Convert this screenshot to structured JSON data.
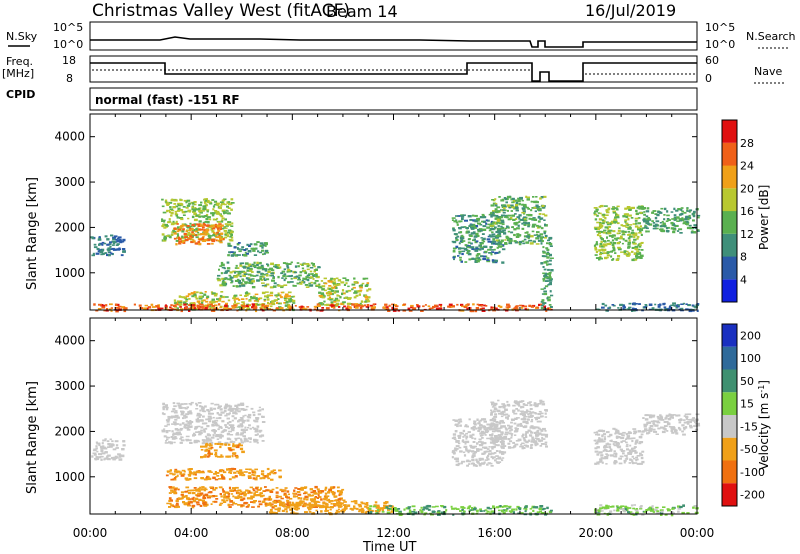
{
  "header": {
    "site": "Christmas Valley West (fitACF)",
    "beam": "Beam 14",
    "date": "16/Jul/2019"
  },
  "top_panels": {
    "nsky_label": "N.Sky",
    "nsearch_label": "N.Search",
    "nsky_ticks": [
      "10^5",
      "10^0"
    ],
    "nsearch_ticks": [
      "10^5",
      "10^0"
    ],
    "freq_label_1": "Freq.",
    "freq_label_2": "[MHz]",
    "freq_ticks": [
      "18",
      "8"
    ],
    "nave_label": "Nave",
    "nave_ticks": [
      "60",
      "0"
    ],
    "cpid_label": "CPID",
    "cpid_text": "normal (fast) -151 RF"
  },
  "chart_data": [
    {
      "type": "heatmap",
      "name": "power",
      "ylabel": "Slant Range [km]",
      "xlabel": "Time UT",
      "xlim": [
        0,
        24
      ],
      "ylim": [
        180,
        4500
      ],
      "yticks": [
        1000,
        2000,
        3000,
        4000
      ],
      "xtick_labels": [
        "00:00",
        "04:00",
        "08:00",
        "12:00",
        "16:00",
        "20:00",
        "00:00"
      ],
      "colorbar": {
        "label": "Power [dB]",
        "ticks": [
          4,
          8,
          12,
          16,
          20,
          24,
          28
        ],
        "colors": [
          "#1020e0",
          "#2a5aa8",
          "#3f8f7a",
          "#5ab050",
          "#b8c830",
          "#f0a018",
          "#f06018",
          "#e01010"
        ]
      },
      "data_gaps_ut": [
        [
          18.25,
          19.9
        ]
      ],
      "regions": [
        {
          "t": [
            0.0,
            1.3
          ],
          "r": [
            1400,
            1850
          ],
          "v": 10
        },
        {
          "t": [
            2.8,
            5.6
          ],
          "r": [
            1700,
            2650
          ],
          "v": 18
        },
        {
          "t": [
            3.3,
            5.2
          ],
          "r": [
            1650,
            2100
          ],
          "v": 26
        },
        {
          "t": [
            5.4,
            7.0
          ],
          "r": [
            1400,
            1700
          ],
          "v": 13
        },
        {
          "t": [
            5.0,
            9.0
          ],
          "r": [
            700,
            1250
          ],
          "v": 16
        },
        {
          "t": [
            3.3,
            8.0
          ],
          "r": [
            200,
            600
          ],
          "v": 20
        },
        {
          "t": [
            9.0,
            11.0
          ],
          "r": [
            300,
            900
          ],
          "v": 19
        },
        {
          "t": [
            0.0,
            18.2
          ],
          "r": [
            180,
            330
          ],
          "v": 28
        },
        {
          "t": [
            14.3,
            16.3
          ],
          "r": [
            1250,
            2300
          ],
          "v": 13
        },
        {
          "t": [
            15.8,
            18.0
          ],
          "r": [
            1650,
            2700
          ],
          "v": 15
        },
        {
          "t": [
            17.8,
            18.2
          ],
          "r": [
            200,
            1800
          ],
          "v": 14
        },
        {
          "t": [
            19.9,
            21.8
          ],
          "r": [
            1300,
            2500
          ],
          "v": 18
        },
        {
          "t": [
            21.8,
            24.0
          ],
          "r": [
            1900,
            2450
          ],
          "v": 14
        },
        {
          "t": [
            19.9,
            24.0
          ],
          "r": [
            180,
            350
          ],
          "v": 10
        }
      ]
    },
    {
      "type": "heatmap",
      "name": "velocity",
      "ylabel": "Slant Range [km]",
      "xlabel": "Time UT",
      "xlim": [
        0,
        24
      ],
      "ylim": [
        180,
        4500
      ],
      "yticks": [
        1000,
        2000,
        3000,
        4000
      ],
      "xtick_labels": [
        "00:00",
        "04:00",
        "08:00",
        "12:00",
        "16:00",
        "20:00",
        "00:00"
      ],
      "colorbar": {
        "label": "Velocity [m s^-1]",
        "ticks": [
          "200",
          "100",
          "50",
          "15",
          "-15",
          "-50",
          "-100",
          "-200"
        ],
        "colors": [
          "#1a30c0",
          "#2f6a9a",
          "#3f9070",
          "#7ad040",
          "#c8c8c8",
          "#f0a018",
          "#f07010",
          "#e01010"
        ]
      },
      "data_gaps_ut": [
        [
          18.25,
          19.9
        ]
      ],
      "regions": [
        {
          "t": [
            0.0,
            1.3
          ],
          "r": [
            1400,
            1850
          ],
          "v": 0
        },
        {
          "t": [
            2.8,
            6.8
          ],
          "r": [
            1750,
            2650
          ],
          "v": 0
        },
        {
          "t": [
            4.3,
            6.0
          ],
          "r": [
            1450,
            1750
          ],
          "v": -40
        },
        {
          "t": [
            3.0,
            7.5
          ],
          "r": [
            950,
            1200
          ],
          "v": -40
        },
        {
          "t": [
            3.0,
            10.0
          ],
          "r": [
            350,
            800
          ],
          "v": -45
        },
        {
          "t": [
            7.0,
            12.0
          ],
          "r": [
            200,
            500
          ],
          "v": -35
        },
        {
          "t": [
            11.0,
            18.2
          ],
          "r": [
            180,
            380
          ],
          "v": 30
        },
        {
          "t": [
            14.3,
            16.3
          ],
          "r": [
            1250,
            2300
          ],
          "v": 0
        },
        {
          "t": [
            15.8,
            18.0
          ],
          "r": [
            1650,
            2700
          ],
          "v": 0
        },
        {
          "t": [
            19.9,
            21.8
          ],
          "r": [
            1300,
            2100
          ],
          "v": 0
        },
        {
          "t": [
            21.8,
            24.0
          ],
          "r": [
            1950,
            2400
          ],
          "v": 0
        },
        {
          "t": [
            19.9,
            24.0
          ],
          "r": [
            180,
            400
          ],
          "v": 20
        }
      ]
    }
  ]
}
